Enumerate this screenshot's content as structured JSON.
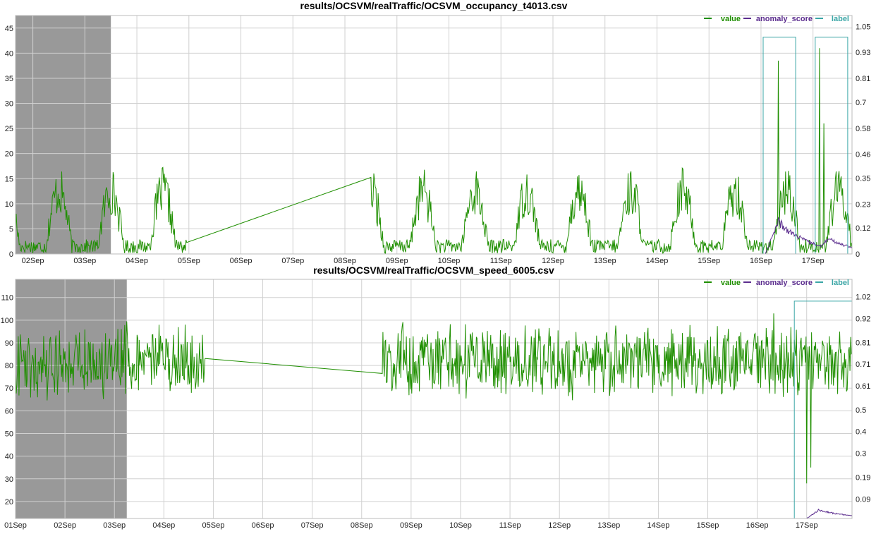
{
  "chart_data": [
    {
      "type": "line",
      "title": "results/OCSVM/realTraffic/OCSVM_occupancy_t4013.csv",
      "x_start": "2015-09-01 16:00",
      "x_end": "2015-09-17 18:00",
      "x_ticks": [
        "02Sep",
        "03Sep",
        "04Sep",
        "05Sep",
        "06Sep",
        "07Sep",
        "08Sep",
        "09Sep",
        "10Sep",
        "11Sep",
        "12Sep",
        "13Sep",
        "14Sep",
        "15Sep",
        "16Sep",
        "17Sep"
      ],
      "y_ticks": [
        "0",
        "5",
        "10",
        "15",
        "20",
        "25",
        "30",
        "35",
        "40",
        "45"
      ],
      "ylim": [
        0,
        47.5
      ],
      "y2_ticks": [
        "0",
        "0.12",
        "0.23",
        "0.35",
        "0.46",
        "0.58",
        "0.7",
        "0.81",
        "0.93",
        "1.05"
      ],
      "y2lim": [
        0,
        1.1
      ],
      "legend": [
        "value",
        "anomaly_score",
        "label"
      ],
      "legend_position": "top-right",
      "grid": true,
      "shaded_region": [
        "2015-09-01 16:00",
        "2015-09-03 12:00"
      ],
      "gap": [
        "2015-09-04 23:00",
        "2015-09-08 12:00"
      ],
      "spikes": [
        {
          "x": "2015-09-16 08:00",
          "y": 38.5
        },
        {
          "x": "2015-09-17 03:00",
          "y": 41.0
        },
        {
          "x": "2015-09-17 05:00",
          "y": 26.0
        }
      ],
      "series": [
        {
          "name": "value",
          "axis": "y",
          "color": "#1f8f00",
          "mean": 8.0,
          "range": [
            0,
            26
          ]
        },
        {
          "name": "anomaly_score",
          "axis": "y2",
          "color": "#5b2d8e",
          "peaks": [
            {
              "x": "2015-09-16 08:00",
              "value": 0.15
            },
            {
              "x": "2015-09-17 07:00",
              "value": 0.07
            }
          ]
        },
        {
          "name": "label",
          "axis": "y2",
          "color": "#3aa6a6",
          "windows": [
            [
              "2015-09-16 01:00",
              "2015-09-16 16:00"
            ],
            [
              "2015-09-17 01:00",
              "2015-09-17 16:00"
            ]
          ],
          "high": 1.0
        }
      ]
    },
    {
      "type": "line",
      "title": "results/OCSVM/realTraffic/OCSVM_speed_6005.csv",
      "x_start": "2015-09-01 00:00",
      "x_end": "2015-09-17 22:00",
      "x_ticks": [
        "01Sep",
        "02Sep",
        "03Sep",
        "04Sep",
        "05Sep",
        "06Sep",
        "07Sep",
        "08Sep",
        "09Sep",
        "10Sep",
        "11Sep",
        "12Sep",
        "13Sep",
        "14Sep",
        "15Sep",
        "16Sep",
        "17Sep"
      ],
      "y_ticks": [
        "20",
        "30",
        "40",
        "50",
        "60",
        "70",
        "80",
        "90",
        "100",
        "110"
      ],
      "ylim": [
        12.5,
        118
      ],
      "y2_ticks": [
        "0.09",
        "0.19",
        "0.3",
        "0.4",
        "0.5",
        "0.61",
        "0.71",
        "0.81",
        "0.92",
        "1.02"
      ],
      "y2lim": [
        0,
        1.1
      ],
      "legend": [
        "value",
        "anomaly_score",
        "label"
      ],
      "legend_position": "top-right",
      "grid": true,
      "shaded_region": [
        "2015-09-01 00:00",
        "2015-09-03 06:00"
      ],
      "gap": [
        "2015-09-04 20:00",
        "2015-09-08 10:00"
      ],
      "spikes": [
        {
          "x": "2015-09-16 08:00",
          "y": 103.0
        },
        {
          "x": "2015-09-17 00:00",
          "y": 28.0
        },
        {
          "x": "2015-09-17 02:00",
          "y": 35.0
        }
      ],
      "series": [
        {
          "name": "value",
          "axis": "y",
          "color": "#1f8f00",
          "mean": 82.0,
          "range": [
            43,
            109
          ]
        },
        {
          "name": "anomaly_score",
          "axis": "y2",
          "color": "#5b2d8e",
          "peaks": [
            {
              "x": "2015-09-17 06:00",
              "value": 0.04
            }
          ]
        },
        {
          "name": "label",
          "axis": "y2",
          "color": "#3aa6a6",
          "windows": [
            [
              "2015-09-16 18:00",
              "2015-09-17 22:00"
            ]
          ],
          "high": 1.0
        }
      ]
    }
  ]
}
